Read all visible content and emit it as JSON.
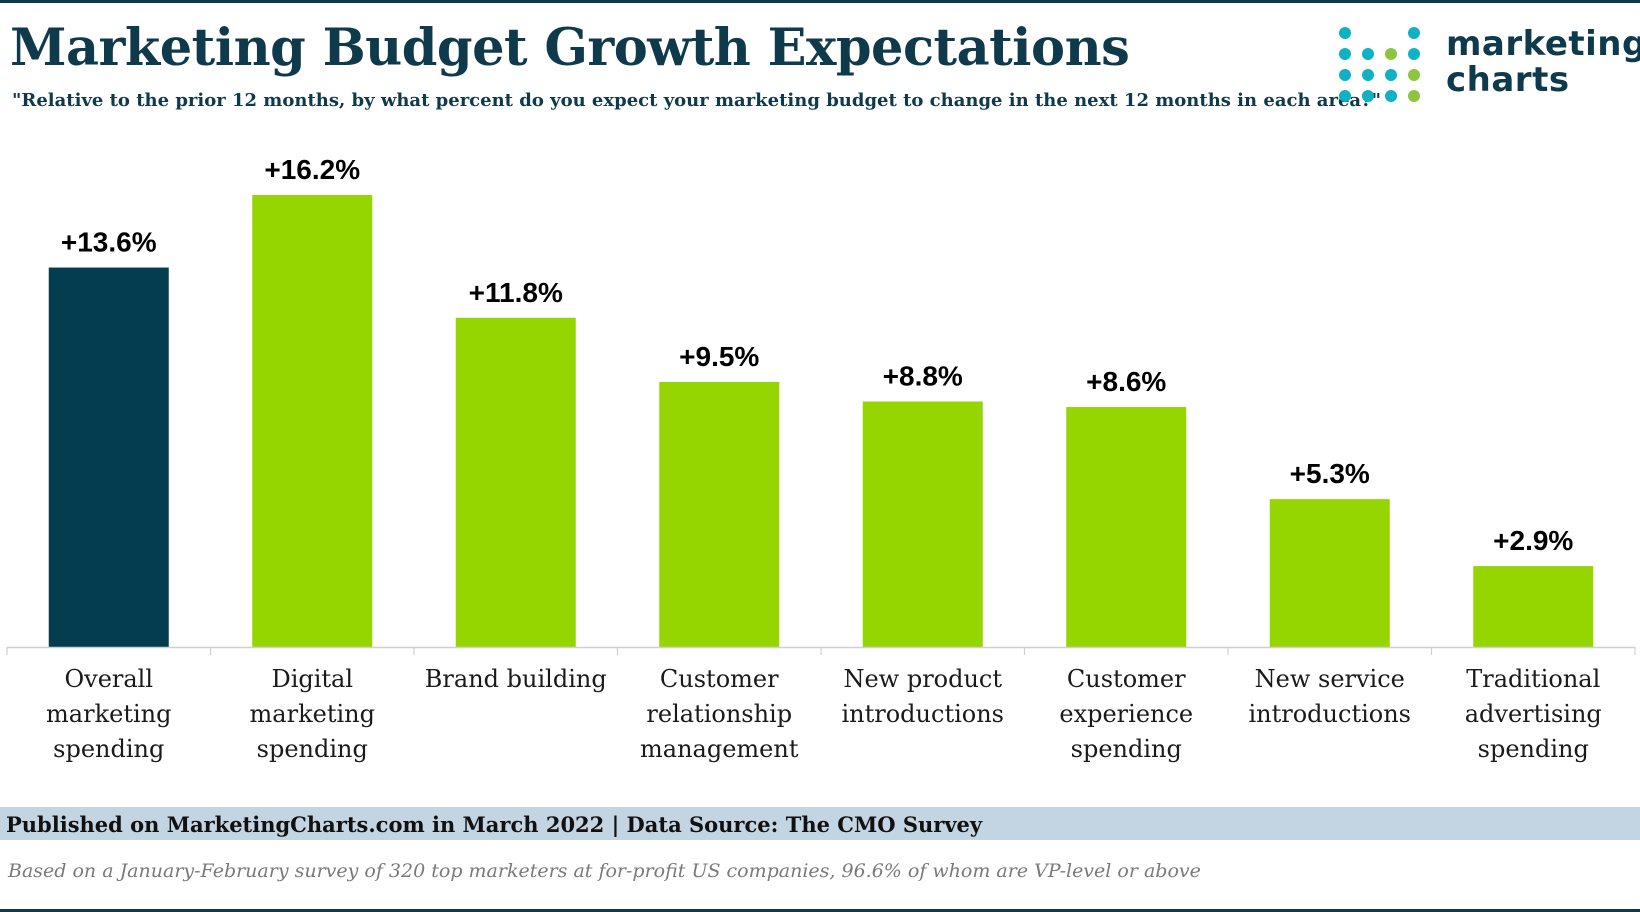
{
  "header": {
    "title": "Marketing Budget Growth Expectations",
    "subtitle": "\"Relative to the prior 12 months, by what percent do you expect your marketing budget to change in the next 12 months in each area?\""
  },
  "logo": {
    "line1": "marketing",
    "line2": "charts",
    "colors": {
      "teal": "#0fb1c5",
      "green": "#8cc63f",
      "navy": "#0e3a4b"
    }
  },
  "chart_data": {
    "type": "bar",
    "categories": [
      "Overall marketing spending",
      "Digital marketing spending",
      "Brand building",
      "Customer relationship management",
      "New product introductions",
      "Customer experience spending",
      "New service introductions",
      "Traditional advertising spending"
    ],
    "category_lines": [
      [
        "Overall",
        "marketing",
        "spending"
      ],
      [
        "Digital",
        "marketing",
        "spending"
      ],
      [
        "Brand building"
      ],
      [
        "Customer",
        "relationship",
        "management"
      ],
      [
        "New product",
        "introductions"
      ],
      [
        "Customer",
        "experience",
        "spending"
      ],
      [
        "New service",
        "introductions"
      ],
      [
        "Traditional",
        "advertising",
        "spending"
      ]
    ],
    "values": [
      13.6,
      16.2,
      11.8,
      9.5,
      8.8,
      8.6,
      5.3,
      2.9
    ],
    "value_labels": [
      "+13.6%",
      "+16.2%",
      "+11.8%",
      "+9.5%",
      "+8.8%",
      "+8.6%",
      "+5.3%",
      "+2.9%"
    ],
    "ylim": [
      0,
      16.2
    ],
    "grid": false,
    "legend": "none",
    "colors": {
      "highlight": "#033d4f",
      "default": "#96d600",
      "axis": "#d0d0d0"
    }
  },
  "footer": {
    "source": "Published on MarketingCharts.com in March 2022 | Data Source: The CMO Survey",
    "note": "Based on a January-February survey of 320 top marketers at for-profit US companies, 96.6% of whom are VP-level or above"
  }
}
